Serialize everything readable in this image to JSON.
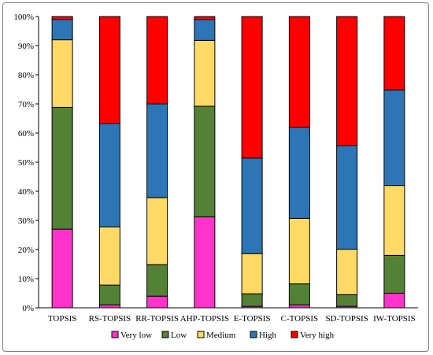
{
  "chart_data": {
    "type": "bar",
    "stacked": "percent",
    "categories": [
      "TOPSIS",
      "RS-TOPSIS",
      "RR-TOPSIS",
      "AHP-TOPSIS",
      "E-TOPSIS",
      "C-TOPSIS",
      "SD-TOPSIS",
      "IW-TOPSIS"
    ],
    "series": [
      {
        "name": "Very low",
        "color": "#ff33cc",
        "values": [
          27.0,
          1.0,
          4.0,
          31.2,
          0.5,
          1.0,
          0.5,
          5.0
        ]
      },
      {
        "name": "Low",
        "color": "#538135",
        "values": [
          41.8,
          6.8,
          10.8,
          38.0,
          4.3,
          7.2,
          4.0,
          13.0
        ]
      },
      {
        "name": "Medium",
        "color": "#ffd966",
        "values": [
          23.2,
          20.0,
          23.0,
          22.6,
          13.8,
          22.5,
          15.6,
          24.0
        ]
      },
      {
        "name": "High",
        "color": "#2e75b6",
        "values": [
          7.0,
          35.5,
          32.2,
          7.2,
          32.8,
          31.3,
          35.6,
          32.8
        ]
      },
      {
        "name": "Very high",
        "color": "#ff0000",
        "values": [
          1.0,
          36.7,
          30.0,
          1.0,
          48.6,
          38.0,
          44.3,
          25.2
        ]
      }
    ],
    "yticks": [
      "0%",
      "10%",
      "20%",
      "30%",
      "40%",
      "50%",
      "60%",
      "70%",
      "80%",
      "90%",
      "100%"
    ],
    "ylim": [
      0,
      100
    ],
    "grid": false,
    "legend": "bottom"
  }
}
